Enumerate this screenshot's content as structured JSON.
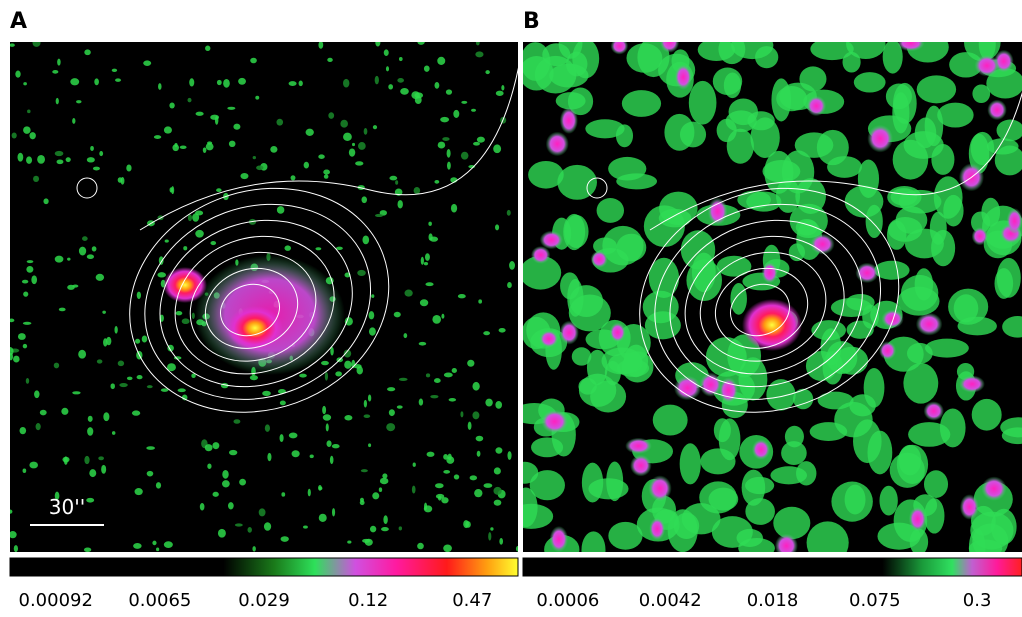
{
  "panels": [
    {
      "label": "A",
      "scalebar": "30''",
      "colorbar": {
        "labels": [
          "0.00092",
          "0.0065",
          "0.029",
          "0.12",
          "0.47"
        ]
      }
    },
    {
      "label": "B",
      "colorbar": {
        "labels": [
          "0.0006",
          "0.0042",
          "0.018",
          "0.075",
          "0.3"
        ]
      }
    }
  ]
}
